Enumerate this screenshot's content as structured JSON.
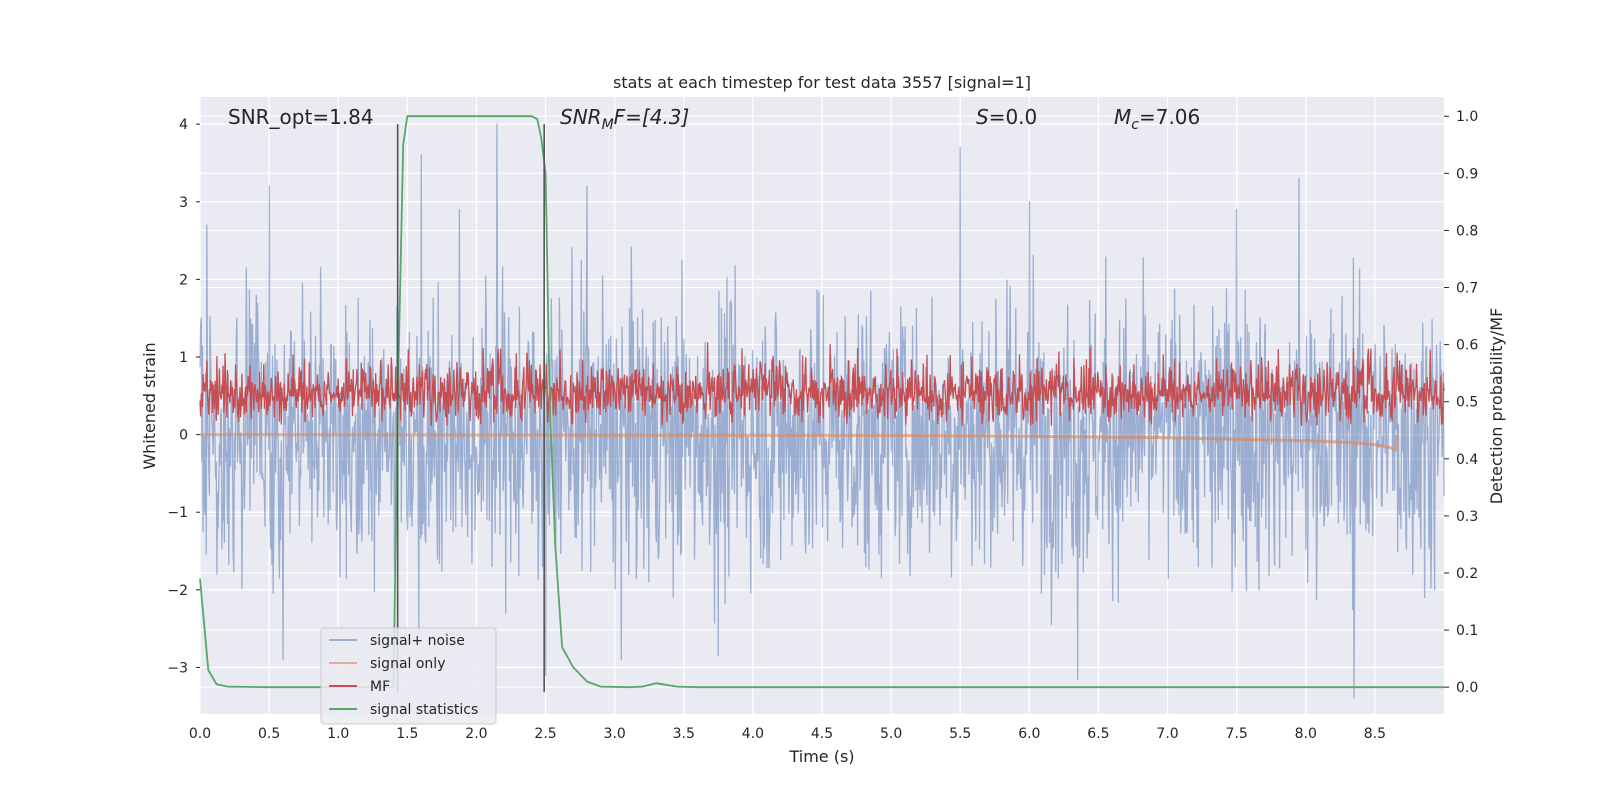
{
  "chart_data": {
    "type": "line",
    "title": "stats at each timestep for test data 3557 [signal=1]",
    "xlabel": "Time (s)",
    "ylabel_left": "Whitened strain",
    "ylabel_right": "Detection probability/MF",
    "xlim": [
      0.0,
      9.0
    ],
    "ylim_left": [
      -3.6,
      4.35
    ],
    "ylim_right": [
      -0.047,
      1.0337
    ],
    "xticks": [
      0.0,
      0.5,
      1.0,
      1.5,
      2.0,
      2.5,
      3.0,
      3.5,
      4.0,
      4.5,
      5.0,
      5.5,
      6.0,
      6.5,
      7.0,
      7.5,
      8.0,
      8.5
    ],
    "xtick_labels": [
      "0.0",
      "0.5",
      "1.0",
      "1.5",
      "2.0",
      "2.5",
      "3.0",
      "3.5",
      "4.0",
      "4.5",
      "5.0",
      "5.5",
      "6.0",
      "6.5",
      "7.0",
      "7.5",
      "8.0",
      "8.5"
    ],
    "yticks_left": [
      -3,
      -2,
      -1,
      0,
      1,
      2,
      3,
      4
    ],
    "ytick_labels_left": [
      "−3",
      "−2",
      "−1",
      "0",
      "1",
      "2",
      "3",
      "4"
    ],
    "yticks_right": [
      0.0,
      0.1,
      0.2,
      0.3,
      0.4,
      0.5,
      0.6,
      0.7,
      0.8,
      0.9,
      1.0
    ],
    "ytick_labels_right": [
      "0.0",
      "0.1",
      "0.2",
      "0.3",
      "0.4",
      "0.5",
      "0.6",
      "0.7",
      "0.8",
      "0.9",
      "1.0"
    ],
    "grid": true,
    "background": "#eaeaf2",
    "legend_position": "lower-left",
    "annotations": {
      "snr_opt": "SNR_opt=1.84",
      "snr_mf_var": "SNR",
      "snr_mf_sub": "M",
      "snr_mf_rest": "F=[4.3]",
      "s_var": "S",
      "s_rest": "=0.0",
      "mc_var": "M",
      "mc_sub": "c",
      "mc_rest": "=7.06"
    },
    "vlines": [
      {
        "x": 1.43,
        "y_range": [
          -3.32,
          4.0
        ]
      },
      {
        "x": 2.49,
        "y_range": [
          -3.32,
          4.0
        ]
      }
    ],
    "series": [
      {
        "name": "signal+ noise",
        "axis": "left",
        "color": "#4c72b0",
        "alpha": 0.5,
        "kind": "noise",
        "amplitude_sd": 0.9,
        "x_range": [
          0.0,
          9.0
        ],
        "peaks": [
          [
            0.05,
            2.7
          ],
          [
            0.5,
            3.2
          ],
          [
            1.6,
            3.6
          ],
          [
            2.15,
            4.0
          ],
          [
            2.8,
            3.2
          ],
          [
            5.5,
            3.7
          ],
          [
            6.0,
            3.0
          ],
          [
            7.5,
            2.9
          ],
          [
            7.95,
            3.3
          ],
          [
            0.6,
            -2.9
          ],
          [
            3.05,
            -2.9
          ],
          [
            3.75,
            -2.85
          ],
          [
            6.35,
            -3.15
          ],
          [
            8.35,
            -3.4
          ],
          [
            2.5,
            -3.1
          ]
        ]
      },
      {
        "name": "signal only",
        "axis": "left",
        "color": "#dd8452",
        "alpha": 0.6,
        "kind": "chirp",
        "points": [
          [
            0.0,
            0.0
          ],
          [
            5.0,
            -0.01
          ],
          [
            6.0,
            -0.02
          ],
          [
            7.0,
            -0.04
          ],
          [
            7.5,
            -0.06
          ],
          [
            8.0,
            -0.08
          ],
          [
            8.3,
            -0.1
          ],
          [
            8.5,
            -0.13
          ],
          [
            8.6,
            -0.16
          ],
          [
            8.65,
            -0.2
          ],
          [
            8.66,
            0.0
          ]
        ]
      },
      {
        "name": "MF",
        "axis": "right",
        "color": "#c44e52",
        "alpha": 1.0,
        "kind": "noise",
        "baseline": 0.5,
        "low": 0.455,
        "amplitude_sd": 0.04,
        "x_range": [
          0.0,
          9.0
        ]
      },
      {
        "name": "signal statistics",
        "axis": "right",
        "color": "#55a868",
        "alpha": 1.0,
        "kind": "line",
        "points": [
          [
            0.0,
            0.19
          ],
          [
            0.06,
            0.03
          ],
          [
            0.12,
            0.005
          ],
          [
            0.2,
            0.001
          ],
          [
            0.5,
            0.0
          ],
          [
            1.35,
            0.0
          ],
          [
            1.4,
            0.001
          ],
          [
            1.43,
            0.5
          ],
          [
            1.47,
            0.95
          ],
          [
            1.5,
            1.0
          ],
          [
            2.0,
            1.0
          ],
          [
            2.4,
            1.0
          ],
          [
            2.44,
            0.995
          ],
          [
            2.47,
            0.96
          ],
          [
            2.5,
            0.9
          ],
          [
            2.53,
            0.5
          ],
          [
            2.57,
            0.25
          ],
          [
            2.62,
            0.07
          ],
          [
            2.7,
            0.035
          ],
          [
            2.8,
            0.01
          ],
          [
            2.9,
            0.001
          ],
          [
            3.1,
            0.0
          ],
          [
            3.2,
            0.001
          ],
          [
            3.3,
            0.007
          ],
          [
            3.45,
            0.001
          ],
          [
            3.6,
            0.0
          ],
          [
            9.0,
            0.0
          ]
        ]
      }
    ]
  }
}
